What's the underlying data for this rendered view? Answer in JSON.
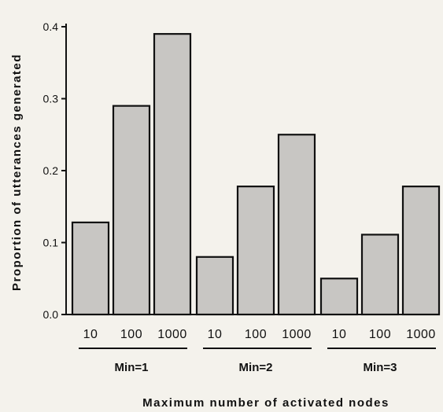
{
  "chart_data": {
    "type": "bar",
    "ylabel": "Proportion of utterances generated",
    "xlabel": "Maximum number of activated nodes",
    "ylim": [
      0,
      0.4
    ],
    "yticks": [
      "0.0",
      "0.1",
      "0.2",
      "0.3",
      "0.4"
    ],
    "grid": false,
    "groups": [
      {
        "label": "Min=1",
        "categories": [
          "10",
          "100",
          "1000"
        ],
        "values": [
          0.128,
          0.29,
          0.39
        ]
      },
      {
        "label": "Min=2",
        "categories": [
          "10",
          "100",
          "1000"
        ],
        "values": [
          0.08,
          0.178,
          0.25
        ]
      },
      {
        "label": "Min=3",
        "categories": [
          "10",
          "100",
          "1000"
        ],
        "values": [
          0.05,
          0.111,
          0.178
        ]
      }
    ],
    "colors": {
      "bar_fill": "#c8c6c3",
      "ink": "#111111"
    }
  }
}
